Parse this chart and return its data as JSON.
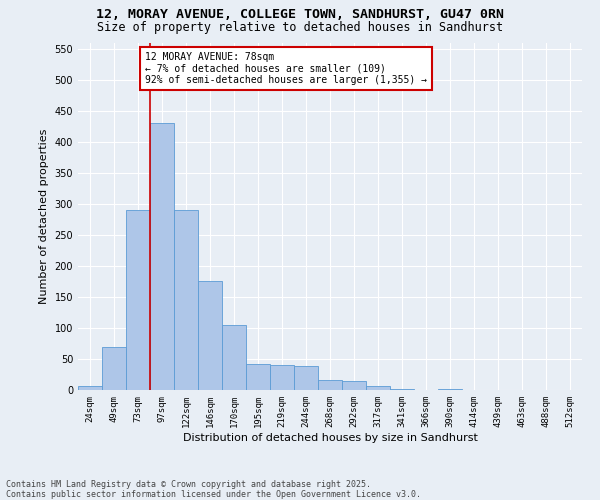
{
  "title_line1": "12, MORAY AVENUE, COLLEGE TOWN, SANDHURST, GU47 0RN",
  "title_line2": "Size of property relative to detached houses in Sandhurst",
  "xlabel": "Distribution of detached houses by size in Sandhurst",
  "ylabel": "Number of detached properties",
  "categories": [
    "24sqm",
    "49sqm",
    "73sqm",
    "97sqm",
    "122sqm",
    "146sqm",
    "170sqm",
    "195sqm",
    "219sqm",
    "244sqm",
    "268sqm",
    "292sqm",
    "317sqm",
    "341sqm",
    "366sqm",
    "390sqm",
    "414sqm",
    "439sqm",
    "463sqm",
    "488sqm",
    "512sqm"
  ],
  "values": [
    7,
    70,
    290,
    430,
    290,
    175,
    105,
    42,
    40,
    38,
    16,
    15,
    6,
    1,
    0,
    1,
    0,
    0,
    0,
    0,
    0
  ],
  "bar_color": "#aec6e8",
  "bar_edge_color": "#5b9bd5",
  "ylim": [
    0,
    560
  ],
  "yticks": [
    0,
    50,
    100,
    150,
    200,
    250,
    300,
    350,
    400,
    450,
    500,
    550
  ],
  "vline_color": "#cc0000",
  "vline_x": 2.5,
  "annotation_text": "12 MORAY AVENUE: 78sqm\n← 7% of detached houses are smaller (109)\n92% of semi-detached houses are larger (1,355) →",
  "annotation_box_color": "#ffffff",
  "annotation_box_edge_color": "#cc0000",
  "footer_line1": "Contains HM Land Registry data © Crown copyright and database right 2025.",
  "footer_line2": "Contains public sector information licensed under the Open Government Licence v3.0.",
  "bg_color": "#e8eef5",
  "grid_color": "#ffffff",
  "title_fontsize": 9.5,
  "subtitle_fontsize": 8.5,
  "tick_fontsize": 6.5,
  "label_fontsize": 8,
  "annotation_fontsize": 7,
  "footer_fontsize": 6
}
